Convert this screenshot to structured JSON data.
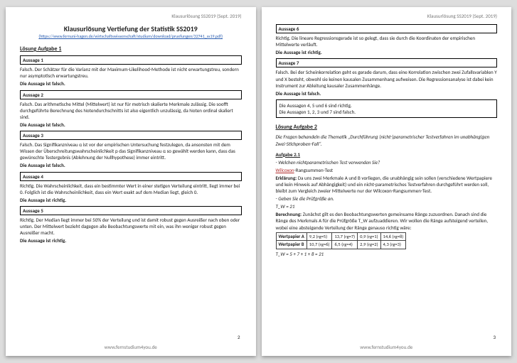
{
  "meta": {
    "running_header": "Klausurlösung SS2019 (Sept. 2019)",
    "footer": "www.fernstudium4you.de",
    "page_numbers": [
      "2",
      "3"
    ],
    "title": "Klausurlösung Vertiefung der Statistik SS2019",
    "source_link": "(https://www.fernuni-hagen.de/wirtschaftswissenschaft/studium/download/pruefungen/32741_ss19.pdf)"
  },
  "task1": {
    "heading": "Lösung Aufgabe 1",
    "statements": [
      {
        "label": "Aussage 1",
        "body": "Falsch. Der Schätzer für die Varianz mit der Maximum-Likelihood-Methode ist nicht erwartungstreu, sondern nur asymptotisch erwartungstreu.",
        "verdict": "Die Aussage ist falsch."
      },
      {
        "label": "Aussage 2",
        "body": "Falsch. Das arithmetische Mittel (Mittelwert) ist nur für metrisch skalierte Merkmale zulässig. Die soofft durchgeführte Berechnung des Notendurchschnitts ist also eigentlich unzulässig, da Noten ordinal skaliert sind.",
        "verdict": "Die Aussage ist falsch."
      },
      {
        "label": "Aussage 3",
        "body": "Falsch. Das Signifikanzniveau α ist vor der empirischen Untersuchung festzulegen, da ansonsten mit dem Wissen der Überschreitungswahrscheinlichkeit p das Signifikanzniveau α so gewählt werden kann, dass das gewünschte Testergebnis (Ablehnung der Nullhypothese) immer eintritt.",
        "verdict": "Die Aussage ist falsch."
      },
      {
        "label": "Aussage 4",
        "body": "Richtig. Die Wahrscheinlichkeit, dass ein bestimmter Wert in einer stetigen Verteilung eintritt, liegt immer bei 0. Folglich ist die Wahrscheinlichkeit, dass ein Wert exakt auf dem Median liegt, gleich 0.",
        "verdict": "Die Aussage ist richtig."
      },
      {
        "label": "Aussage 5",
        "body": "Richtig. Der Median liegt immer bei 50% der Verteilung und ist damit robust gegen Ausreißer nach oben oder unten. Der Mittelwert bezieht dagegen alle Beobachtungswerte mit ein, was ihn weniger robust gegen Ausreißer macht.",
        "verdict": "Die Aussage ist richtig."
      },
      {
        "label": "Aussage 6",
        "body": "Richtig. Die lineare Regressionsgerade ist so gelegt, dass sie durch die Koordinaten der empirischen Mittelwerte verläuft.",
        "verdict": "Die Aussage ist richtig."
      },
      {
        "label": "Aussage 7",
        "body": "Falsch. Bei der Scheinkorrelation geht es gerade darum, dass eine Korrelation zwischen zwei Zufallsvariablen Y und X besteht, obwohl sie keinen kausalen Zusammenhang aufweisen. Die Regressionsanalyse ist dabei kein Instrument zur Ableitung kausaler Zusammenhänge.",
        "verdict": "Die Aussage ist falsch."
      }
    ],
    "summary_line1": "Die Aussagen 4, 5 und 6 sind richtig.",
    "summary_line2": "Die Aussagen 1, 2, 3 und 7 sind falsch."
  },
  "task2": {
    "heading": "Lösung Aufgabe 2",
    "intro_italic": "Die Fragen behandeln die Thematik „Durchführung (nicht-)parametrischer Testverfahren im unabhängigen Zwei-Stichproben-Fall“.",
    "subtask_label": "Aufgabe 2.1",
    "q1": "- Welchen nichtparametrischen Test verwenden Sie?",
    "a1_red": "Wilcoxon",
    "a1_rest": "-Rangsummen-Test",
    "explain_label": "Erklärung:",
    "explain_body": "Da uns zwei Merkmale A und B vorliegen, die unabhängig sein sollen (verschiedene Wertpapiere und kein Hinweis auf Abhängigkeit) und ein nicht-parametrisches Testverfahren durchgeführt werden soll, bleibt zum Vergleich zweier Mittelwerte nur der Wilcoxon-Rangsummen-Test.",
    "q2": "- Geben Sie die Prüfgröße an.",
    "formula1": "T_W = 21",
    "calc_label": "Berechnung:",
    "calc_body": "Zunächst gilt es den Beobachtungswerten gemeinsame Ränge zuzuordnen. Danach sind die Ränge des Merkmals A für die Prüfgröße T_W aufzuaddieren. Wir wollen die Ränge aufsteigend verteilen, wobei eine absteigende Verteilung der Ränge genauso richtig wäre:",
    "table": {
      "type": "table",
      "columns_count": 5,
      "rows": [
        [
          "Wertpapier A",
          "9,2 (rg=5)",
          "13,7 (rg=7)",
          "0,9 (rg=1)",
          "14,6 (rg=8)"
        ],
        [
          "Wertpapier B",
          "10,7 (rg=6)",
          "6,5 (rg=4)",
          "2,9 (rg=2)",
          "4,3 (rg=3)"
        ]
      ],
      "border_color": "#444444",
      "font_size_pt": 6.5
    },
    "formula2": "T_W = 5 + 7 + 1 + 8 = 21"
  },
  "styles": {
    "background_color": "#dddddd",
    "paper_color": "#ffffff",
    "text_color": "#222222",
    "muted_text_color": "#777777",
    "accent_color": "#2a5db0",
    "box_border_color": "#000000",
    "red_color": "#b02a2a",
    "title_fontsize_pt": 10,
    "section_fontsize_pt": 8,
    "body_fontsize_pt": 7
  }
}
